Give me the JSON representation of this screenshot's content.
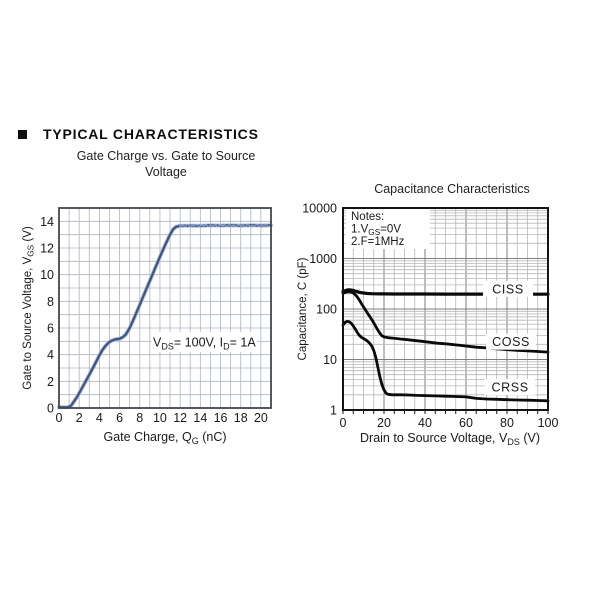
{
  "page": {
    "heading": "TYPICAL CHARACTERISTICS"
  },
  "chart_data": [
    {
      "type": "line",
      "title": "Gate Charge vs. Gate to Source Voltage",
      "xlabel_parts": [
        {
          "t": "Gate Charge, Q"
        },
        {
          "t": "G",
          "sub": true
        },
        {
          "t": " (nC)"
        }
      ],
      "ylabel_parts": [
        {
          "t": "Gate to Source Voltage, V"
        },
        {
          "t": "GS",
          "sub": true
        },
        {
          "t": " (V)"
        }
      ],
      "xlim": [
        0,
        21
      ],
      "ylim": [
        0,
        15
      ],
      "xticks": [
        0,
        2,
        4,
        6,
        8,
        10,
        12,
        14,
        16,
        18,
        20
      ],
      "yticks": [
        0,
        2,
        4,
        6,
        8,
        10,
        12,
        14
      ],
      "grid_step_x": 1,
      "grid_step_y": 1,
      "line_color": "#3e5586",
      "fuzz_color": "#8fa5cd",
      "annotation": {
        "parts": [
          {
            "t": "V"
          },
          {
            "t": "DS",
            "sub": true
          },
          {
            "t": "= 100V, I"
          },
          {
            "t": "D",
            "sub": true
          },
          {
            "t": "= 1A"
          }
        ],
        "q": 14.4,
        "v": 4.95
      },
      "series": [
        {
          "name": "VGS",
          "points": [
            [
              0,
              0.05
            ],
            [
              0.5,
              0.05
            ],
            [
              0.9,
              0.07
            ],
            [
              1.2,
              0.18
            ],
            [
              1.5,
              0.5
            ],
            [
              1.8,
              0.85
            ],
            [
              2.1,
              1.25
            ],
            [
              2.5,
              1.8
            ],
            [
              3,
              2.5
            ],
            [
              3.5,
              3.2
            ],
            [
              4,
              3.95
            ],
            [
              4.3,
              4.35
            ],
            [
              4.6,
              4.65
            ],
            [
              4.9,
              4.9
            ],
            [
              5.2,
              5.05
            ],
            [
              5.6,
              5.15
            ],
            [
              6,
              5.2
            ],
            [
              6.3,
              5.3
            ],
            [
              6.6,
              5.5
            ],
            [
              7,
              6.0
            ],
            [
              7.5,
              6.85
            ],
            [
              8,
              7.75
            ],
            [
              8.5,
              8.65
            ],
            [
              9,
              9.55
            ],
            [
              9.5,
              10.45
            ],
            [
              10,
              11.35
            ],
            [
              10.5,
              12.2
            ],
            [
              11,
              13.0
            ],
            [
              11.3,
              13.4
            ],
            [
              11.6,
              13.6
            ],
            [
              12,
              13.66
            ],
            [
              13,
              13.68
            ],
            [
              14,
              13.66
            ],
            [
              15,
              13.7
            ],
            [
              16,
              13.68
            ],
            [
              17,
              13.7
            ],
            [
              18,
              13.68
            ],
            [
              19,
              13.7
            ],
            [
              20,
              13.68
            ],
            [
              21,
              13.7
            ]
          ]
        }
      ]
    },
    {
      "type": "line",
      "title": "Capacitance Characteristics",
      "xlabel_parts": [
        {
          "t": "Drain to Source Voltage, V"
        },
        {
          "t": "DS",
          "sub": true
        },
        {
          "t": " (V)"
        }
      ],
      "ylabel": "Capacitance, C (pF)",
      "yscale": "log",
      "xlim": [
        0,
        100
      ],
      "ylim": [
        1,
        10000
      ],
      "xticks": [
        0,
        20,
        40,
        60,
        80,
        100
      ],
      "yticks": [
        10000,
        1000,
        100,
        10,
        1
      ],
      "grid_step_x": 5,
      "major_step_x": 20,
      "line_color": "#0a0a0a",
      "notes": {
        "lines": [
          [
            {
              "t": "Notes:"
            }
          ],
          [
            {
              "t": "1.V"
            },
            {
              "t": "GS",
              "sub": true
            },
            {
              "t": "=0V"
            }
          ],
          [
            {
              "t": "2.F=1MHz"
            }
          ]
        ]
      },
      "series": [
        {
          "name": "CISS",
          "label": {
            "text": "CISS",
            "v": 80.5,
            "c": 250
          },
          "points": [
            [
              0,
              222
            ],
            [
              1,
              230
            ],
            [
              2,
              238
            ],
            [
              3,
              240
            ],
            [
              4,
              237
            ],
            [
              5,
              232
            ],
            [
              6,
              226
            ],
            [
              7,
              220
            ],
            [
              8,
              214
            ],
            [
              9,
              210
            ],
            [
              10,
              207
            ],
            [
              12,
              203
            ],
            [
              14,
              201
            ],
            [
              16,
              200
            ],
            [
              18,
              199
            ],
            [
              20,
              199
            ],
            [
              25,
              198
            ],
            [
              30,
              198
            ],
            [
              40,
              198
            ],
            [
              50,
              197
            ],
            [
              60,
              197
            ],
            [
              70,
              197
            ],
            [
              80,
              197
            ],
            [
              90,
              196
            ],
            [
              100,
              196
            ]
          ]
        },
        {
          "name": "COSS",
          "label": {
            "text": "COSS",
            "v": 82,
            "c": 22.5
          },
          "points": [
            [
              0,
              205
            ],
            [
              1,
              212
            ],
            [
              2,
              218
            ],
            [
              3,
              220
            ],
            [
              4,
              216
            ],
            [
              5,
              208
            ],
            [
              6,
              192
            ],
            [
              7,
              172
            ],
            [
              8,
              150
            ],
            [
              9,
              128
            ],
            [
              10,
              110
            ],
            [
              11,
              95
            ],
            [
              12,
              82
            ],
            [
              13,
              72
            ],
            [
              14,
              62
            ],
            [
              15,
              53
            ],
            [
              16,
              45
            ],
            [
              17,
              38
            ],
            [
              18,
              33
            ],
            [
              19,
              29.5
            ],
            [
              20,
              28
            ],
            [
              21,
              27.5
            ],
            [
              22,
              27
            ],
            [
              24,
              26.5
            ],
            [
              26,
              26
            ],
            [
              28,
              25.5
            ],
            [
              30,
              25
            ],
            [
              34,
              24
            ],
            [
              38,
              23
            ],
            [
              42,
              22
            ],
            [
              46,
              21
            ],
            [
              50,
              20.5
            ],
            [
              55,
              19.5
            ],
            [
              60,
              18.5
            ],
            [
              65,
              17.5
            ],
            [
              70,
              17
            ],
            [
              75,
              16.3
            ],
            [
              80,
              15.7
            ],
            [
              85,
              15.2
            ],
            [
              90,
              14.8
            ],
            [
              95,
              14.4
            ],
            [
              100,
              14
            ]
          ]
        },
        {
          "name": "CRSS",
          "label": {
            "text": "CRSS",
            "v": 81.5,
            "c": 2.85
          },
          "points": [
            [
              0,
              48
            ],
            [
              1,
              54
            ],
            [
              2,
              57
            ],
            [
              3,
              56
            ],
            [
              4,
              52
            ],
            [
              5,
              46
            ],
            [
              6,
              40
            ],
            [
              7,
              34
            ],
            [
              8,
              30
            ],
            [
              9,
              27.5
            ],
            [
              10,
              26
            ],
            [
              11,
              24.5
            ],
            [
              12,
              23
            ],
            [
              13,
              21
            ],
            [
              14,
              18.5
            ],
            [
              15,
              15
            ],
            [
              16,
              11
            ],
            [
              17,
              7
            ],
            [
              18,
              4.5
            ],
            [
              19,
              3.2
            ],
            [
              20,
              2.5
            ],
            [
              21,
              2.15
            ],
            [
              22,
              2.05
            ],
            [
              24,
              2.0
            ],
            [
              28,
              2.0
            ],
            [
              32,
              1.98
            ],
            [
              36,
              1.95
            ],
            [
              40,
              1.93
            ],
            [
              45,
              1.9
            ],
            [
              50,
              1.88
            ],
            [
              55,
              1.85
            ],
            [
              60,
              1.82
            ],
            [
              65,
              1.7
            ],
            [
              70,
              1.65
            ],
            [
              75,
              1.63
            ],
            [
              80,
              1.6
            ],
            [
              85,
              1.58
            ],
            [
              90,
              1.56
            ],
            [
              95,
              1.54
            ],
            [
              100,
              1.52
            ]
          ]
        }
      ]
    }
  ]
}
